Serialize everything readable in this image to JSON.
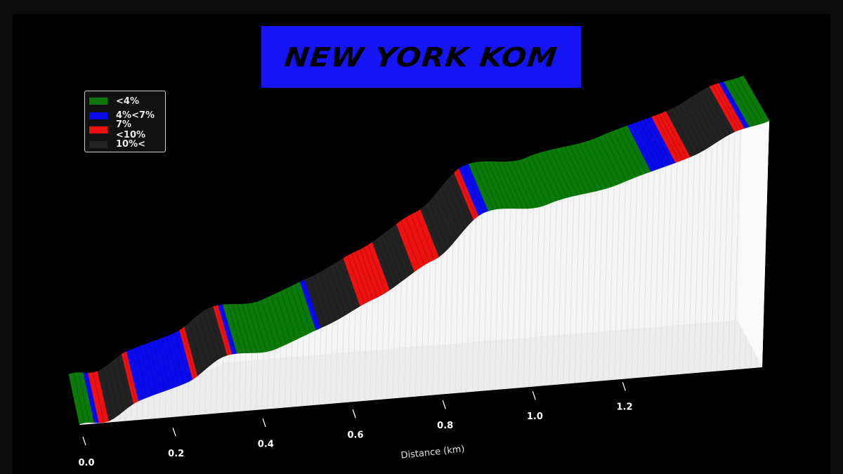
{
  "title": "NEW YORK KOM",
  "colors": {
    "background": "#000000",
    "title_box": "#1414f5",
    "wall": "#f4f4f4"
  },
  "legend": [
    {
      "label": "<4%",
      "color": "#0b7a0b"
    },
    {
      "label": "4%<7%",
      "color": "#0a0aee"
    },
    {
      "label": "7%<10%",
      "color": "#ee1111"
    },
    {
      "label": "10%<",
      "color": "#222222"
    }
  ],
  "chart_data": {
    "type": "area",
    "title": "NEW YORK KOM",
    "xlabel": "Distance (km)",
    "xlim": [
      0,
      1.4
    ],
    "x_ticks": [
      "0.0",
      "0.2",
      "0.4",
      "0.6",
      "0.8",
      "1.0",
      "1.2"
    ],
    "legend_position": "top-left",
    "grade_segments": [
      {
        "start": 0.0,
        "end": 0.03,
        "color": "#0b7a0b"
      },
      {
        "start": 0.03,
        "end": 0.04,
        "color": "#0a0aee"
      },
      {
        "start": 0.04,
        "end": 0.06,
        "color": "#ee1111"
      },
      {
        "start": 0.06,
        "end": 0.11,
        "color": "#222222"
      },
      {
        "start": 0.11,
        "end": 0.12,
        "color": "#ee1111"
      },
      {
        "start": 0.12,
        "end": 0.23,
        "color": "#0a0aee"
      },
      {
        "start": 0.23,
        "end": 0.24,
        "color": "#ee1111"
      },
      {
        "start": 0.24,
        "end": 0.3,
        "color": "#222222"
      },
      {
        "start": 0.3,
        "end": 0.31,
        "color": "#ee1111"
      },
      {
        "start": 0.31,
        "end": 0.32,
        "color": "#0a0aee"
      },
      {
        "start": 0.32,
        "end": 0.48,
        "color": "#0b7a0b"
      },
      {
        "start": 0.48,
        "end": 0.49,
        "color": "#0a0aee"
      },
      {
        "start": 0.49,
        "end": 0.57,
        "color": "#222222"
      },
      {
        "start": 0.57,
        "end": 0.63,
        "color": "#ee1111"
      },
      {
        "start": 0.63,
        "end": 0.68,
        "color": "#222222"
      },
      {
        "start": 0.68,
        "end": 0.73,
        "color": "#ee1111"
      },
      {
        "start": 0.73,
        "end": 0.8,
        "color": "#222222"
      },
      {
        "start": 0.8,
        "end": 0.81,
        "color": "#ee1111"
      },
      {
        "start": 0.81,
        "end": 0.83,
        "color": "#0a0aee"
      },
      {
        "start": 0.83,
        "end": 1.16,
        "color": "#0b7a0b"
      },
      {
        "start": 1.16,
        "end": 1.21,
        "color": "#0a0aee"
      },
      {
        "start": 1.21,
        "end": 1.24,
        "color": "#ee1111"
      },
      {
        "start": 1.24,
        "end": 1.33,
        "color": "#222222"
      },
      {
        "start": 1.33,
        "end": 1.35,
        "color": "#ee1111"
      },
      {
        "start": 1.35,
        "end": 1.36,
        "color": "#0a0aee"
      },
      {
        "start": 1.36,
        "end": 1.4,
        "color": "#0b7a0b"
      }
    ]
  }
}
